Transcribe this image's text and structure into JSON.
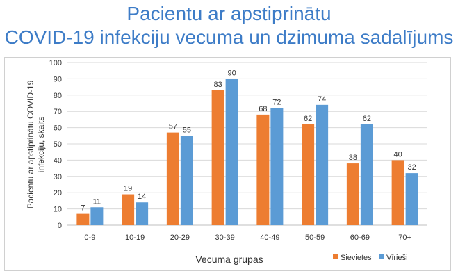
{
  "title_line1": "Pacientu ar apstiprinātu",
  "title_line2": "COVID-19 infekciju vecuma un dzimuma sadalījums",
  "chart_data": {
    "type": "bar",
    "categories": [
      "0-9",
      "10-19",
      "20-29",
      "30-39",
      "40-49",
      "50-59",
      "60-69",
      "70+"
    ],
    "series": [
      {
        "name": "Sievietes",
        "values": [
          7,
          19,
          57,
          83,
          68,
          62,
          38,
          40
        ],
        "color": "#ed7d31"
      },
      {
        "name": "Vīrieši",
        "values": [
          11,
          14,
          55,
          90,
          72,
          74,
          62,
          32
        ],
        "color": "#5b9bd5"
      }
    ],
    "xlabel": "Vecuma grupas",
    "ylabel_line1": "Pacientu ar apstiprinātu COVID-19",
    "ylabel_line2": "infekciju, skaits",
    "ylim": [
      0,
      100
    ],
    "yticks": [
      0,
      10,
      20,
      30,
      40,
      50,
      60,
      70,
      80,
      90,
      100
    ],
    "grid": true,
    "legend_position": "bottom-right"
  }
}
